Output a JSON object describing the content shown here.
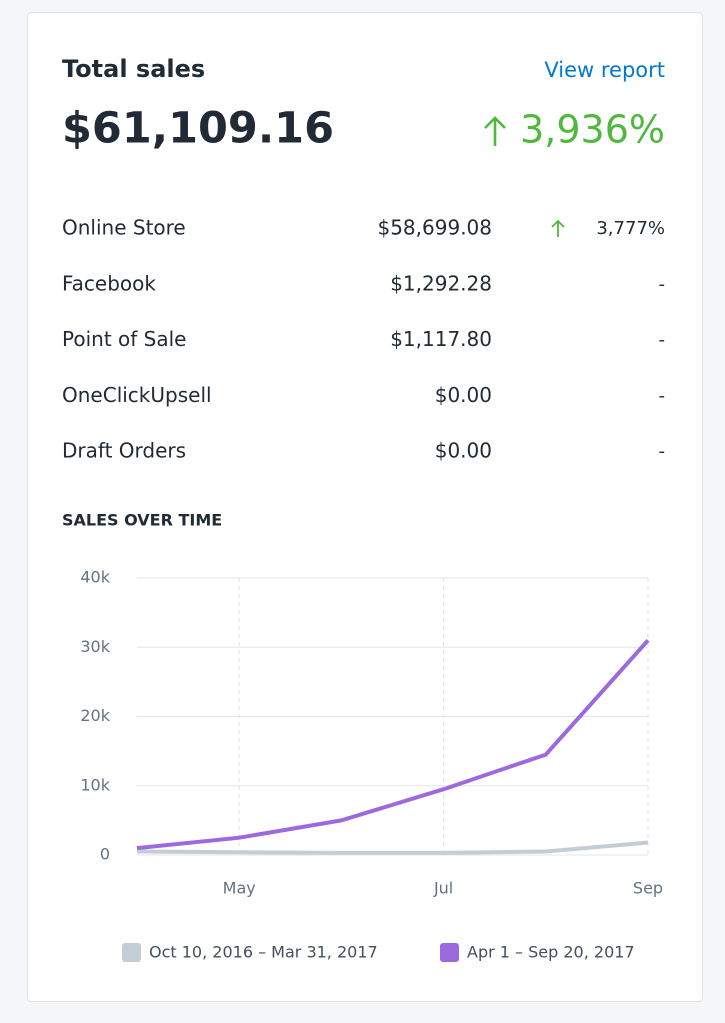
{
  "card": {
    "title": "Total sales",
    "link": "View report",
    "total": "$61,109.16",
    "change": "3,936%"
  },
  "table": {
    "rows": [
      [
        "Online Store",
        "$58,699.08",
        "3,777%"
      ],
      [
        "Facebook",
        "$1,292.28",
        "-"
      ],
      [
        "Point of Sale",
        "$1,117.80",
        "-"
      ],
      [
        "OneClickUpsell",
        "$0.00",
        "-"
      ],
      [
        "Draft Orders",
        "$0.00",
        "-"
      ]
    ]
  },
  "chart_data": {
    "type": "line",
    "title": "SALES OVER TIME",
    "categories": [
      null,
      "May",
      null,
      "Jul",
      null,
      "Sep"
    ],
    "series": [
      {
        "name": "Oct 10, 2016 – Mar 31, 2017",
        "color": "#c4cdd5",
        "values": [
          500,
          400,
          300,
          300,
          500,
          1800
        ]
      },
      {
        "name": "Apr 1 – Sep 20, 2017",
        "color": "#9c6ade",
        "values": [
          1000,
          2500,
          5000,
          9500,
          14500,
          31000
        ]
      }
    ],
    "ylim": [
      0,
      40000
    ],
    "yticks": [
      0,
      {
        "value": 10000,
        "label": "10k"
      },
      {
        "value": 20000,
        "label": "20k"
      },
      {
        "value": 30000,
        "label": "30k"
      },
      {
        "value": 40000,
        "label": "40k"
      }
    ],
    "grid": true
  }
}
